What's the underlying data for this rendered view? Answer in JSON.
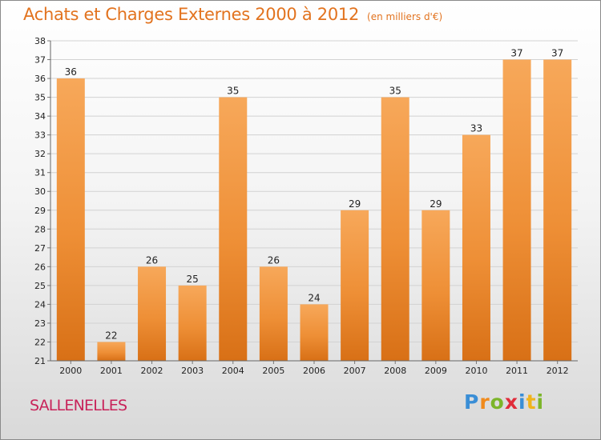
{
  "chart_data": {
    "type": "bar",
    "title": "Achats et Charges Externes 2000 à 2012",
    "subtitle": "(en milliers d'€)",
    "categories": [
      "2000",
      "2001",
      "2002",
      "2003",
      "2004",
      "2005",
      "2006",
      "2007",
      "2008",
      "2009",
      "2010",
      "2011",
      "2012"
    ],
    "values": [
      36,
      22,
      26,
      25,
      35,
      26,
      24,
      29,
      35,
      29,
      33,
      37,
      37
    ],
    "xlabel": "",
    "ylabel": "",
    "ylim": [
      21,
      38
    ],
    "yticks": [
      "21",
      "22",
      "23",
      "24",
      "25",
      "26",
      "27",
      "28",
      "29",
      "30",
      "31",
      "32",
      "33",
      "34",
      "35",
      "36",
      "37",
      "38"
    ],
    "grid": true,
    "legend": "none",
    "bar_color": "#f0923a"
  },
  "footer": {
    "commune": "SALLENELLES",
    "brand_letters": [
      {
        "char": "P",
        "color": "#3a8ed6"
      },
      {
        "char": "r",
        "color": "#f08a1c"
      },
      {
        "char": "o",
        "color": "#7cb52a"
      },
      {
        "char": "x",
        "color": "#e02c3a"
      },
      {
        "char": "i",
        "color": "#3a8ed6"
      },
      {
        "char": "t",
        "color": "#f0b41c"
      },
      {
        "char": "i",
        "color": "#7cb52a"
      }
    ]
  }
}
